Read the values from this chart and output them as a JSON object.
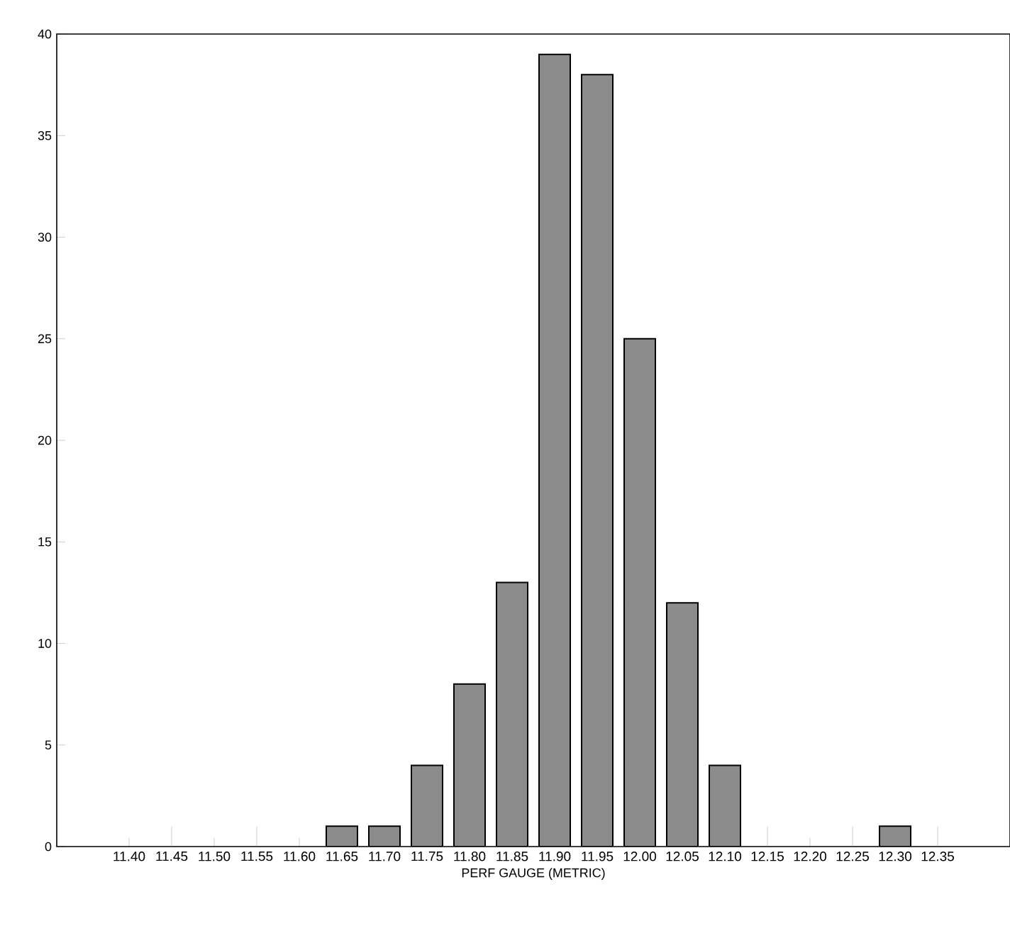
{
  "chart_data": {
    "type": "bar",
    "xlabel": "PERF GAUGE (METRIC)",
    "x": [
      11.65,
      11.7,
      11.75,
      11.8,
      11.85,
      11.9,
      11.95,
      12.0,
      12.05,
      12.1,
      12.3
    ],
    "values": [
      1,
      1,
      4,
      8,
      13,
      39,
      38,
      25,
      12,
      4,
      1
    ],
    "color": "#8c8c8c",
    "xlim": [
      11.315,
      12.435
    ],
    "xticks": [
      {
        "value": 11.4,
        "label": "11.40"
      },
      11.45,
      {
        "value": 11.5,
        "label": "11.50"
      },
      11.55,
      {
        "value": 11.6,
        "label": "11.60"
      },
      11.65,
      {
        "value": 11.7,
        "label": "11.70"
      },
      11.75,
      {
        "value": 11.8,
        "label": "11.80"
      },
      11.85,
      {
        "value": 11.9,
        "label": "11.90"
      },
      11.95,
      {
        "value": 12.0,
        "label": "12.00"
      },
      12.05,
      {
        "value": 12.1,
        "label": "12.10"
      },
      12.15,
      {
        "value": 12.2,
        "label": "12.20"
      },
      12.25,
      {
        "value": 12.3,
        "label": "12.30"
      },
      12.35
    ],
    "ylim": [
      0,
      40
    ],
    "yticks": [
      0,
      5,
      10,
      15,
      20,
      25,
      30,
      35,
      40
    ],
    "grid": false
  }
}
